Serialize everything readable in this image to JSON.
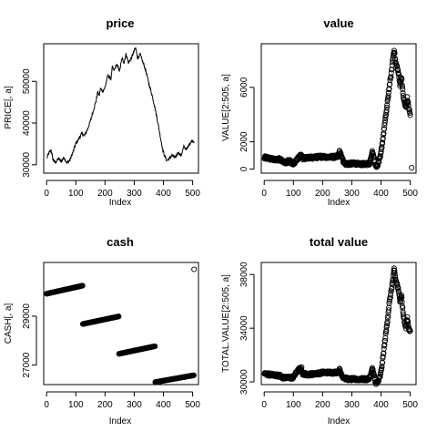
{
  "chart_data": [
    {
      "type": "line",
      "title": "price",
      "xlabel": "Index",
      "ylabel": "PRICE[, a]",
      "xlim": [
        -10,
        520
      ],
      "ylim": [
        28000,
        59000
      ],
      "xticks": [
        0,
        100,
        200,
        300,
        400,
        500
      ],
      "yticks": [
        30000,
        40000,
        50000
      ],
      "anchors": [
        [
          0,
          31500
        ],
        [
          8,
          32800
        ],
        [
          15,
          33600
        ],
        [
          22,
          31200
        ],
        [
          30,
          30500
        ],
        [
          40,
          31500
        ],
        [
          50,
          30800
        ],
        [
          60,
          31800
        ],
        [
          70,
          30400
        ],
        [
          80,
          31200
        ],
        [
          90,
          33000
        ],
        [
          100,
          35000
        ],
        [
          110,
          36200
        ],
        [
          120,
          37500
        ],
        [
          130,
          37000
        ],
        [
          140,
          38500
        ],
        [
          150,
          40500
        ],
        [
          160,
          43000
        ],
        [
          170,
          45500
        ],
        [
          175,
          47500
        ],
        [
          180,
          46500
        ],
        [
          185,
          48500
        ],
        [
          190,
          47500
        ],
        [
          200,
          48500
        ],
        [
          210,
          51500
        ],
        [
          220,
          50500
        ],
        [
          225,
          53500
        ],
        [
          230,
          52500
        ],
        [
          240,
          54000
        ],
        [
          250,
          52500
        ],
        [
          258,
          55500
        ],
        [
          265,
          54500
        ],
        [
          272,
          56500
        ],
        [
          280,
          54500
        ],
        [
          290,
          55500
        ],
        [
          298,
          57000
        ],
        [
          305,
          58000
        ],
        [
          312,
          55500
        ],
        [
          320,
          56500
        ],
        [
          330,
          54500
        ],
        [
          340,
          52500
        ],
        [
          350,
          49500
        ],
        [
          360,
          47000
        ],
        [
          370,
          44000
        ],
        [
          380,
          40500
        ],
        [
          390,
          36500
        ],
        [
          398,
          33500
        ],
        [
          405,
          32000
        ],
        [
          412,
          31000
        ],
        [
          420,
          31500
        ],
        [
          430,
          32300
        ],
        [
          440,
          31600
        ],
        [
          450,
          33000
        ],
        [
          460,
          32200
        ],
        [
          470,
          34300
        ],
        [
          480,
          33700
        ],
        [
          490,
          35200
        ],
        [
          500,
          35800
        ],
        [
          505,
          35500
        ]
      ]
    },
    {
      "type": "scatter",
      "title": "value",
      "xlabel": "Index",
      "ylabel": "VALUE[2:505, a]",
      "xlim": [
        -10,
        520
      ],
      "ylim": [
        -300,
        9200
      ],
      "xticks": [
        0,
        100,
        200,
        300,
        400,
        500
      ],
      "yticks": [
        0,
        2000,
        6000
      ],
      "anchors": [
        [
          1,
          850
        ],
        [
          20,
          780
        ],
        [
          40,
          680
        ],
        [
          55,
          720
        ],
        [
          65,
          520
        ],
        [
          75,
          480
        ],
        [
          85,
          620
        ],
        [
          95,
          430
        ],
        [
          100,
          350
        ],
        [
          110,
          620
        ],
        [
          120,
          900
        ],
        [
          128,
          1050
        ],
        [
          132,
          800
        ],
        [
          150,
          820
        ],
        [
          170,
          850
        ],
        [
          190,
          900
        ],
        [
          200,
          920
        ],
        [
          220,
          880
        ],
        [
          240,
          900
        ],
        [
          255,
          1000
        ],
        [
          258,
          1300
        ],
        [
          262,
          1100
        ],
        [
          270,
          600
        ],
        [
          280,
          400
        ],
        [
          290,
          380
        ],
        [
          300,
          420
        ],
        [
          320,
          380
        ],
        [
          340,
          360
        ],
        [
          350,
          380
        ],
        [
          360,
          420
        ],
        [
          365,
          700
        ],
        [
          370,
          1400
        ],
        [
          375,
          900
        ],
        [
          380,
          400
        ],
        [
          385,
          200
        ],
        [
          390,
          400
        ],
        [
          398,
          900
        ],
        [
          405,
          2000
        ],
        [
          412,
          3200
        ],
        [
          420,
          4500
        ],
        [
          428,
          6000
        ],
        [
          435,
          7000
        ],
        [
          440,
          8000
        ],
        [
          445,
          8800
        ],
        [
          450,
          7800
        ],
        [
          455,
          7500
        ],
        [
          460,
          7000
        ],
        [
          465,
          6200
        ],
        [
          470,
          6800
        ],
        [
          475,
          5500
        ],
        [
          480,
          4900
        ],
        [
          485,
          4500
        ],
        [
          490,
          5200
        ],
        [
          495,
          4500
        ],
        [
          500,
          4000
        ]
      ],
      "outliers": [
        [
          505,
          100
        ]
      ]
    },
    {
      "type": "scatter",
      "title": "cash",
      "xlabel": "Index",
      "ylabel": "CASH[, a]",
      "xlim": [
        -10,
        520
      ],
      "ylim": [
        26200,
        31200
      ],
      "xticks": [
        0,
        100,
        200,
        300,
        400,
        500
      ],
      "yticks": [
        27000,
        29000
      ],
      "segments": [
        {
          "x_start": 0,
          "x_end": 123,
          "y_start": 29920,
          "y_end": 30250
        },
        {
          "x_start": 124,
          "x_end": 247,
          "y_start": 28680,
          "y_end": 28990
        },
        {
          "x_start": 248,
          "x_end": 371,
          "y_start": 27460,
          "y_end": 27770
        },
        {
          "x_start": 372,
          "x_end": 504,
          "y_start": 26300,
          "y_end": 26580
        }
      ],
      "outliers": [
        [
          505,
          30920
        ]
      ]
    },
    {
      "type": "scatter",
      "title": "total value",
      "xlabel": "Index",
      "ylabel": "TOTAL.VALUE[2:505, a]",
      "xlim": [
        -10,
        520
      ],
      "ylim": [
        29800,
        38900
      ],
      "xticks": [
        0,
        100,
        200,
        300,
        400,
        500
      ],
      "yticks": [
        30000,
        34000,
        38000
      ],
      "anchors": [
        [
          1,
          30600
        ],
        [
          20,
          30550
        ],
        [
          40,
          30500
        ],
        [
          55,
          30450
        ],
        [
          65,
          30300
        ],
        [
          75,
          30300
        ],
        [
          85,
          30350
        ],
        [
          95,
          30300
        ],
        [
          100,
          30350
        ],
        [
          110,
          30700
        ],
        [
          120,
          30950
        ],
        [
          128,
          31000
        ],
        [
          132,
          30600
        ],
        [
          150,
          30550
        ],
        [
          170,
          30600
        ],
        [
          190,
          30650
        ],
        [
          200,
          30700
        ],
        [
          220,
          30700
        ],
        [
          240,
          30700
        ],
        [
          255,
          30750
        ],
        [
          258,
          30900
        ],
        [
          262,
          30700
        ],
        [
          270,
          30350
        ],
        [
          280,
          30250
        ],
        [
          290,
          30200
        ],
        [
          300,
          30200
        ],
        [
          320,
          30200
        ],
        [
          340,
          30200
        ],
        [
          350,
          30200
        ],
        [
          360,
          30250
        ],
        [
          365,
          30550
        ],
        [
          370,
          31000
        ],
        [
          375,
          30600
        ],
        [
          380,
          30000
        ],
        [
          385,
          29900
        ],
        [
          390,
          30000
        ],
        [
          398,
          30500
        ],
        [
          405,
          31500
        ],
        [
          412,
          32800
        ],
        [
          420,
          34200
        ],
        [
          428,
          35800
        ],
        [
          435,
          36800
        ],
        [
          440,
          37500
        ],
        [
          445,
          38400
        ],
        [
          450,
          37600
        ],
        [
          455,
          37300
        ],
        [
          460,
          36800
        ],
        [
          465,
          36000
        ],
        [
          470,
          36500
        ],
        [
          475,
          35200
        ],
        [
          480,
          34500
        ],
        [
          485,
          34000
        ],
        [
          490,
          34800
        ],
        [
          495,
          34000
        ],
        [
          500,
          33700
        ]
      ]
    }
  ]
}
